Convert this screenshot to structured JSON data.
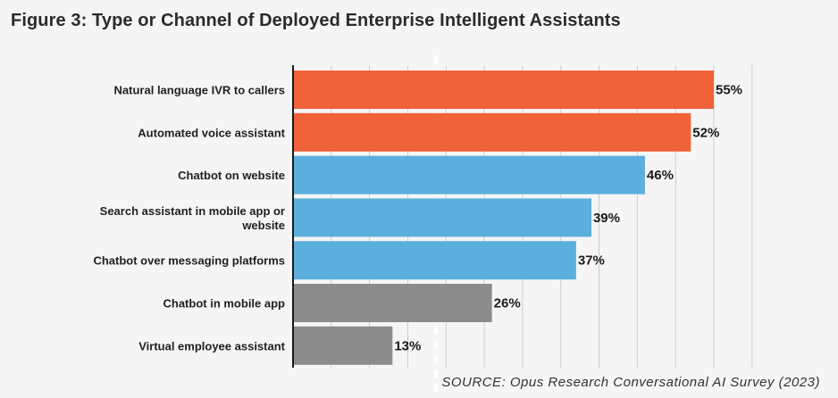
{
  "chart_data": {
    "type": "bar",
    "orientation": "horizontal",
    "title": "Figure 3: Type or Channel of Deployed Enterprise Intelligent Assistants",
    "categories": [
      "Natural language IVR to callers",
      "Automated voice assistant",
      "Chatbot on website",
      "Search assistant in mobile app or website",
      "Chatbot over messaging platforms",
      "Chatbot in mobile app",
      "Virtual employee assistant"
    ],
    "values": [
      55,
      52,
      46,
      39,
      37,
      26,
      13
    ],
    "value_labels": [
      "55%",
      "52%",
      "46%",
      "39%",
      "37%",
      "26%",
      "13%"
    ],
    "colors": [
      "#f0623a",
      "#f0623a",
      "#5aafdc",
      "#5aafdc",
      "#5aafdc",
      "#8c8c8c",
      "#8c8c8c"
    ],
    "xlim": [
      0,
      60
    ],
    "grid": true,
    "xlabel": "",
    "ylabel": "",
    "source": "SOURCE: Opus Research Conversational AI Survey (2023)"
  }
}
